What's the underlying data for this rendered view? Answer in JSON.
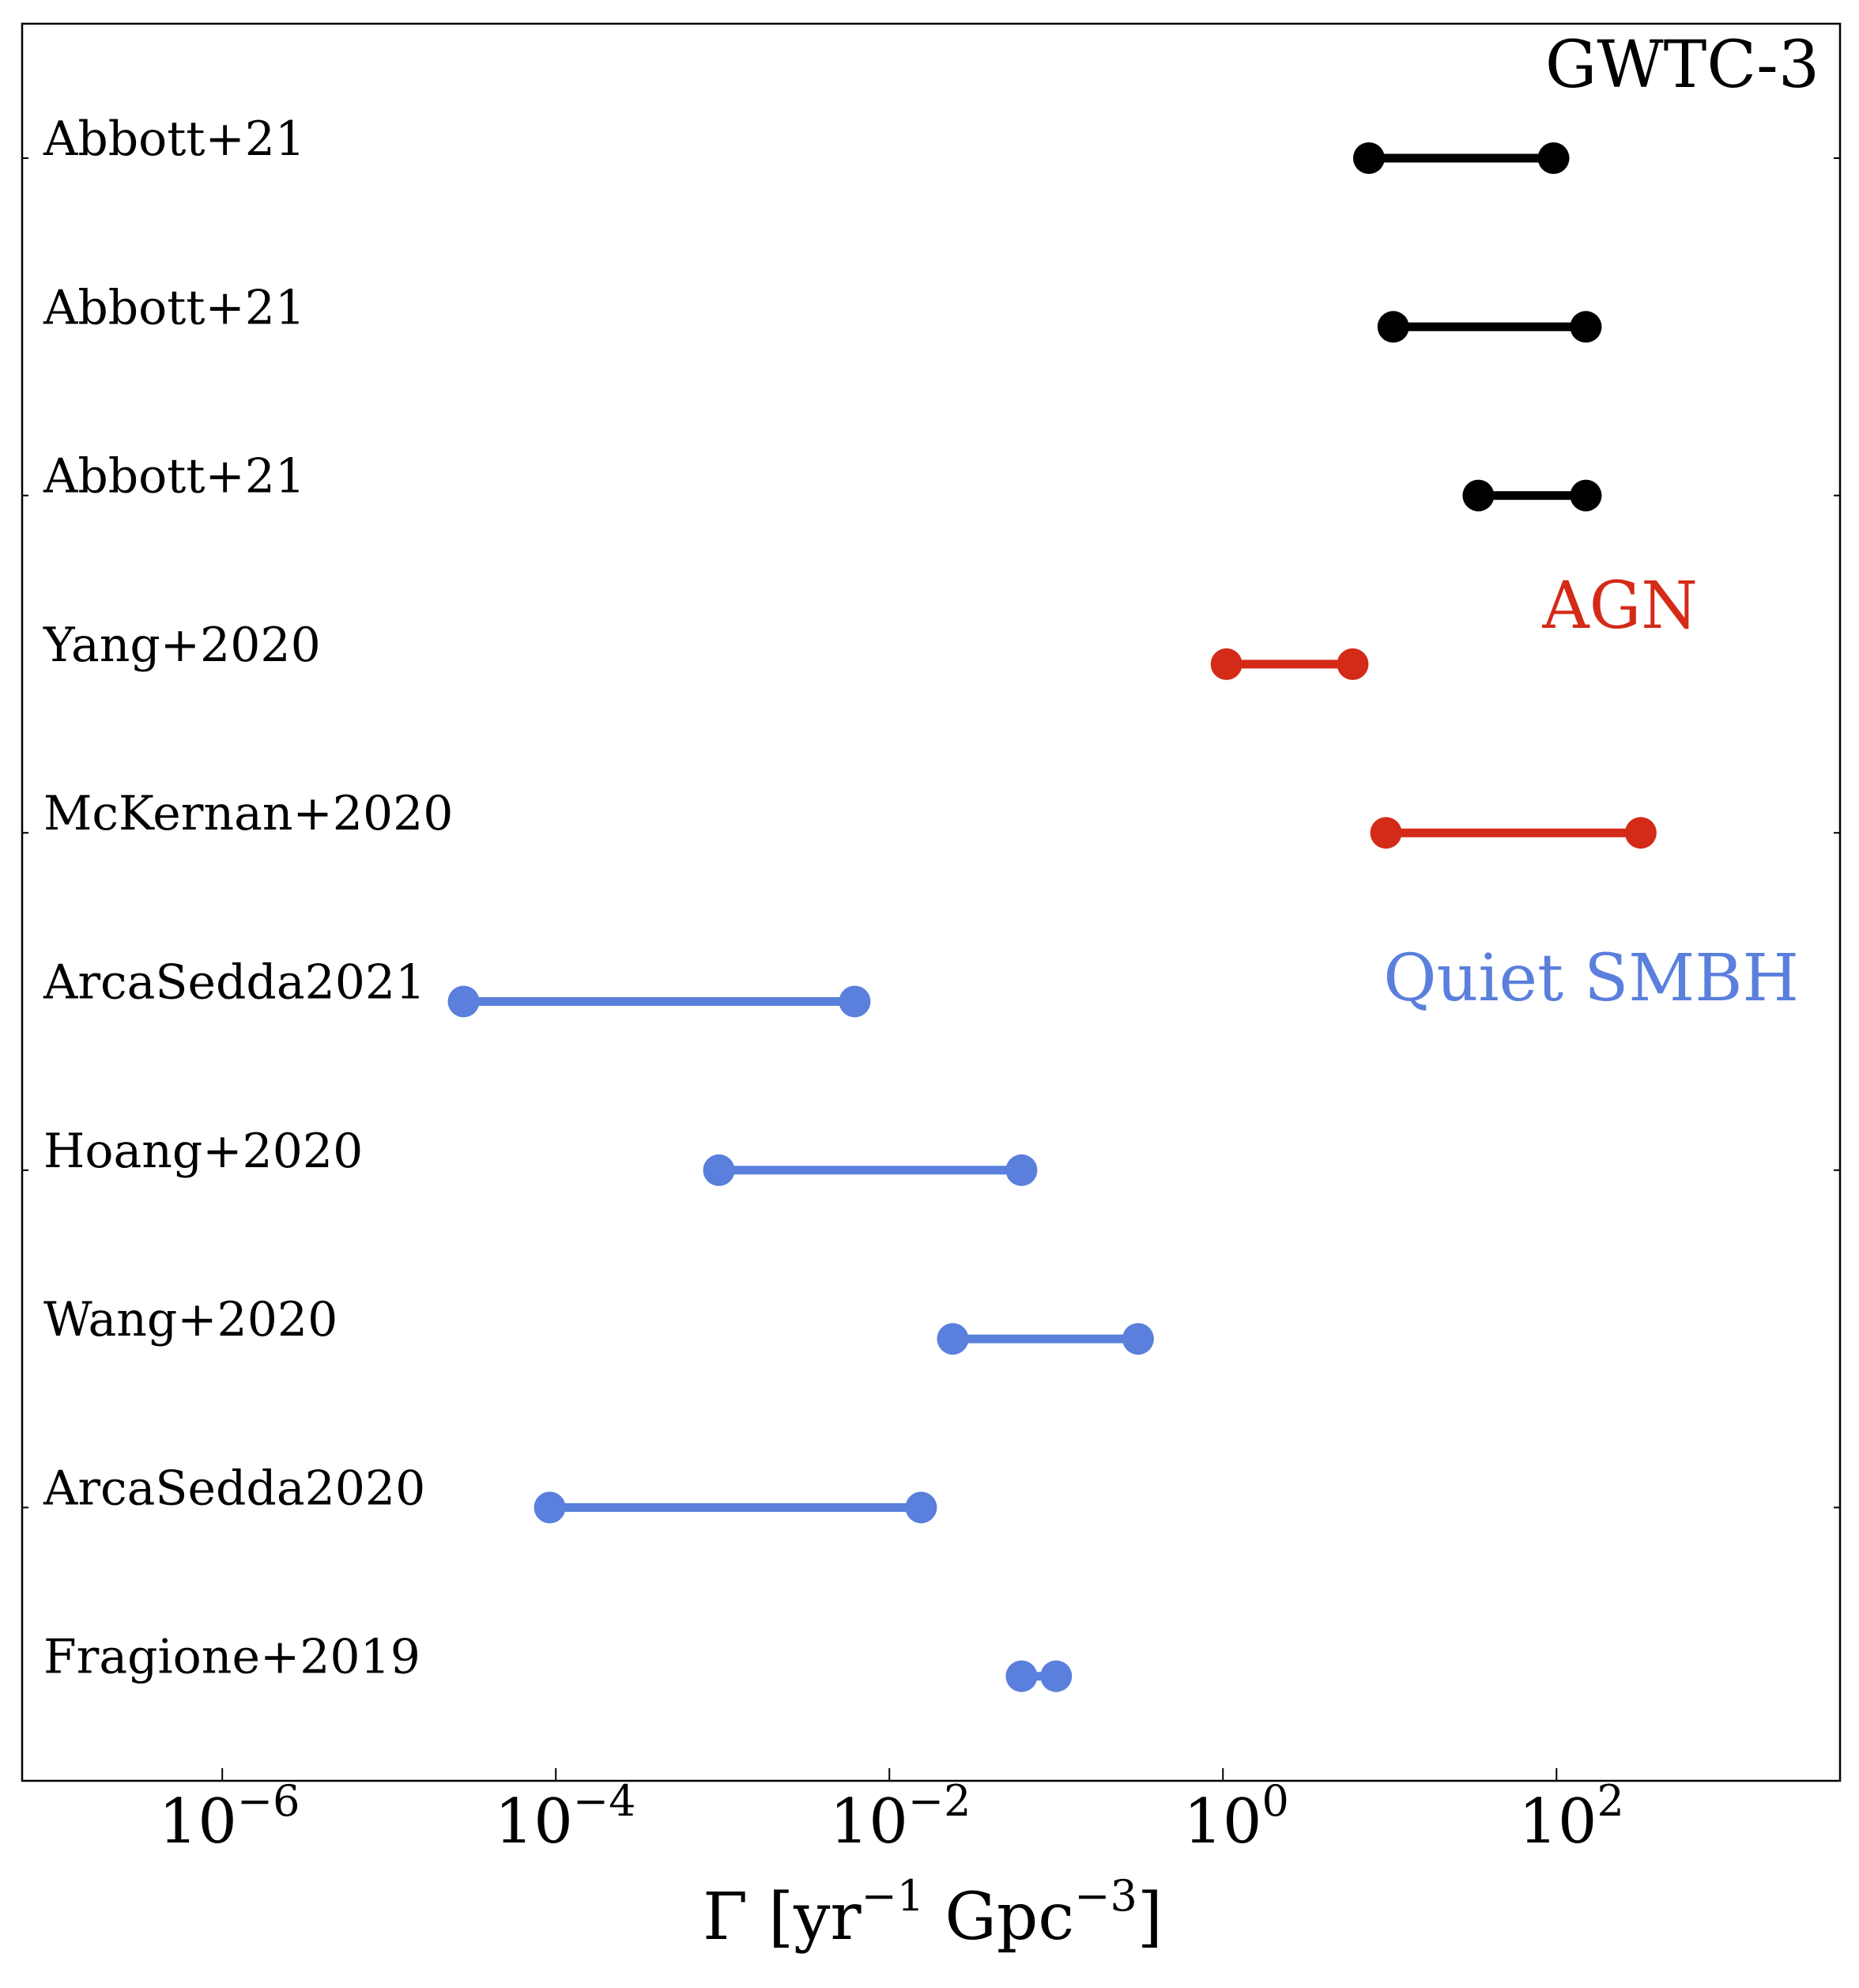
{
  "chart_data": {
    "type": "range-dumbbell",
    "xscale": "log",
    "xlim_log10": [
      -7.2,
      3.7
    ],
    "xticks_log10": [
      -6,
      -4,
      -2,
      0,
      2
    ],
    "xtick_labels": [
      {
        "base": "10",
        "exp": "−6"
      },
      {
        "base": "10",
        "exp": "−4"
      },
      {
        "base": "10",
        "exp": "−2"
      },
      {
        "base": "10",
        "exp": "0"
      },
      {
        "base": "10",
        "exp": "2"
      }
    ],
    "xlabel": {
      "symbol": "Γ",
      "open": " [yr",
      "exp1": "−1",
      "mid": " Gpc",
      "exp2": "−3",
      "close": "]"
    },
    "colors": {
      "GWTC-3": "#000000",
      "AGN": "#d42a18",
      "Quiet SMBH": "#5a7fdc"
    },
    "group_labels": [
      {
        "text": "GWTC-3",
        "color": "#000000"
      },
      {
        "text": "AGN",
        "color": "#d42a18"
      },
      {
        "text": "Quiet SMBH",
        "color": "#5a7fdc"
      }
    ],
    "rows": [
      {
        "label": "Abbott+21",
        "group": "GWTC-3",
        "low": 7.5,
        "high": 96
      },
      {
        "label": "Abbott+21",
        "group": "GWTC-3",
        "low": 10.5,
        "high": 150
      },
      {
        "label": "Abbott+21",
        "group": "GWTC-3",
        "low": 34,
        "high": 150
      },
      {
        "label": "Yang+2020",
        "group": "AGN",
        "low": 1.05,
        "high": 6
      },
      {
        "label": "McKernan+2020",
        "group": "AGN",
        "low": 9.5,
        "high": 320
      },
      {
        "label": "ArcaSedda2021",
        "group": "Quiet SMBH",
        "low": 2.8e-05,
        "high": 0.0062
      },
      {
        "label": "Hoang+2020",
        "group": "Quiet SMBH",
        "low": 0.00095,
        "high": 0.062
      },
      {
        "label": "Wang+2020",
        "group": "Quiet SMBH",
        "low": 0.024,
        "high": 0.31
      },
      {
        "label": "ArcaSedda2020",
        "group": "Quiet SMBH",
        "low": 9.2e-05,
        "high": 0.0155
      },
      {
        "label": "Fragione+2019",
        "group": "Quiet SMBH",
        "low": 0.062,
        "high": 0.1
      }
    ]
  }
}
